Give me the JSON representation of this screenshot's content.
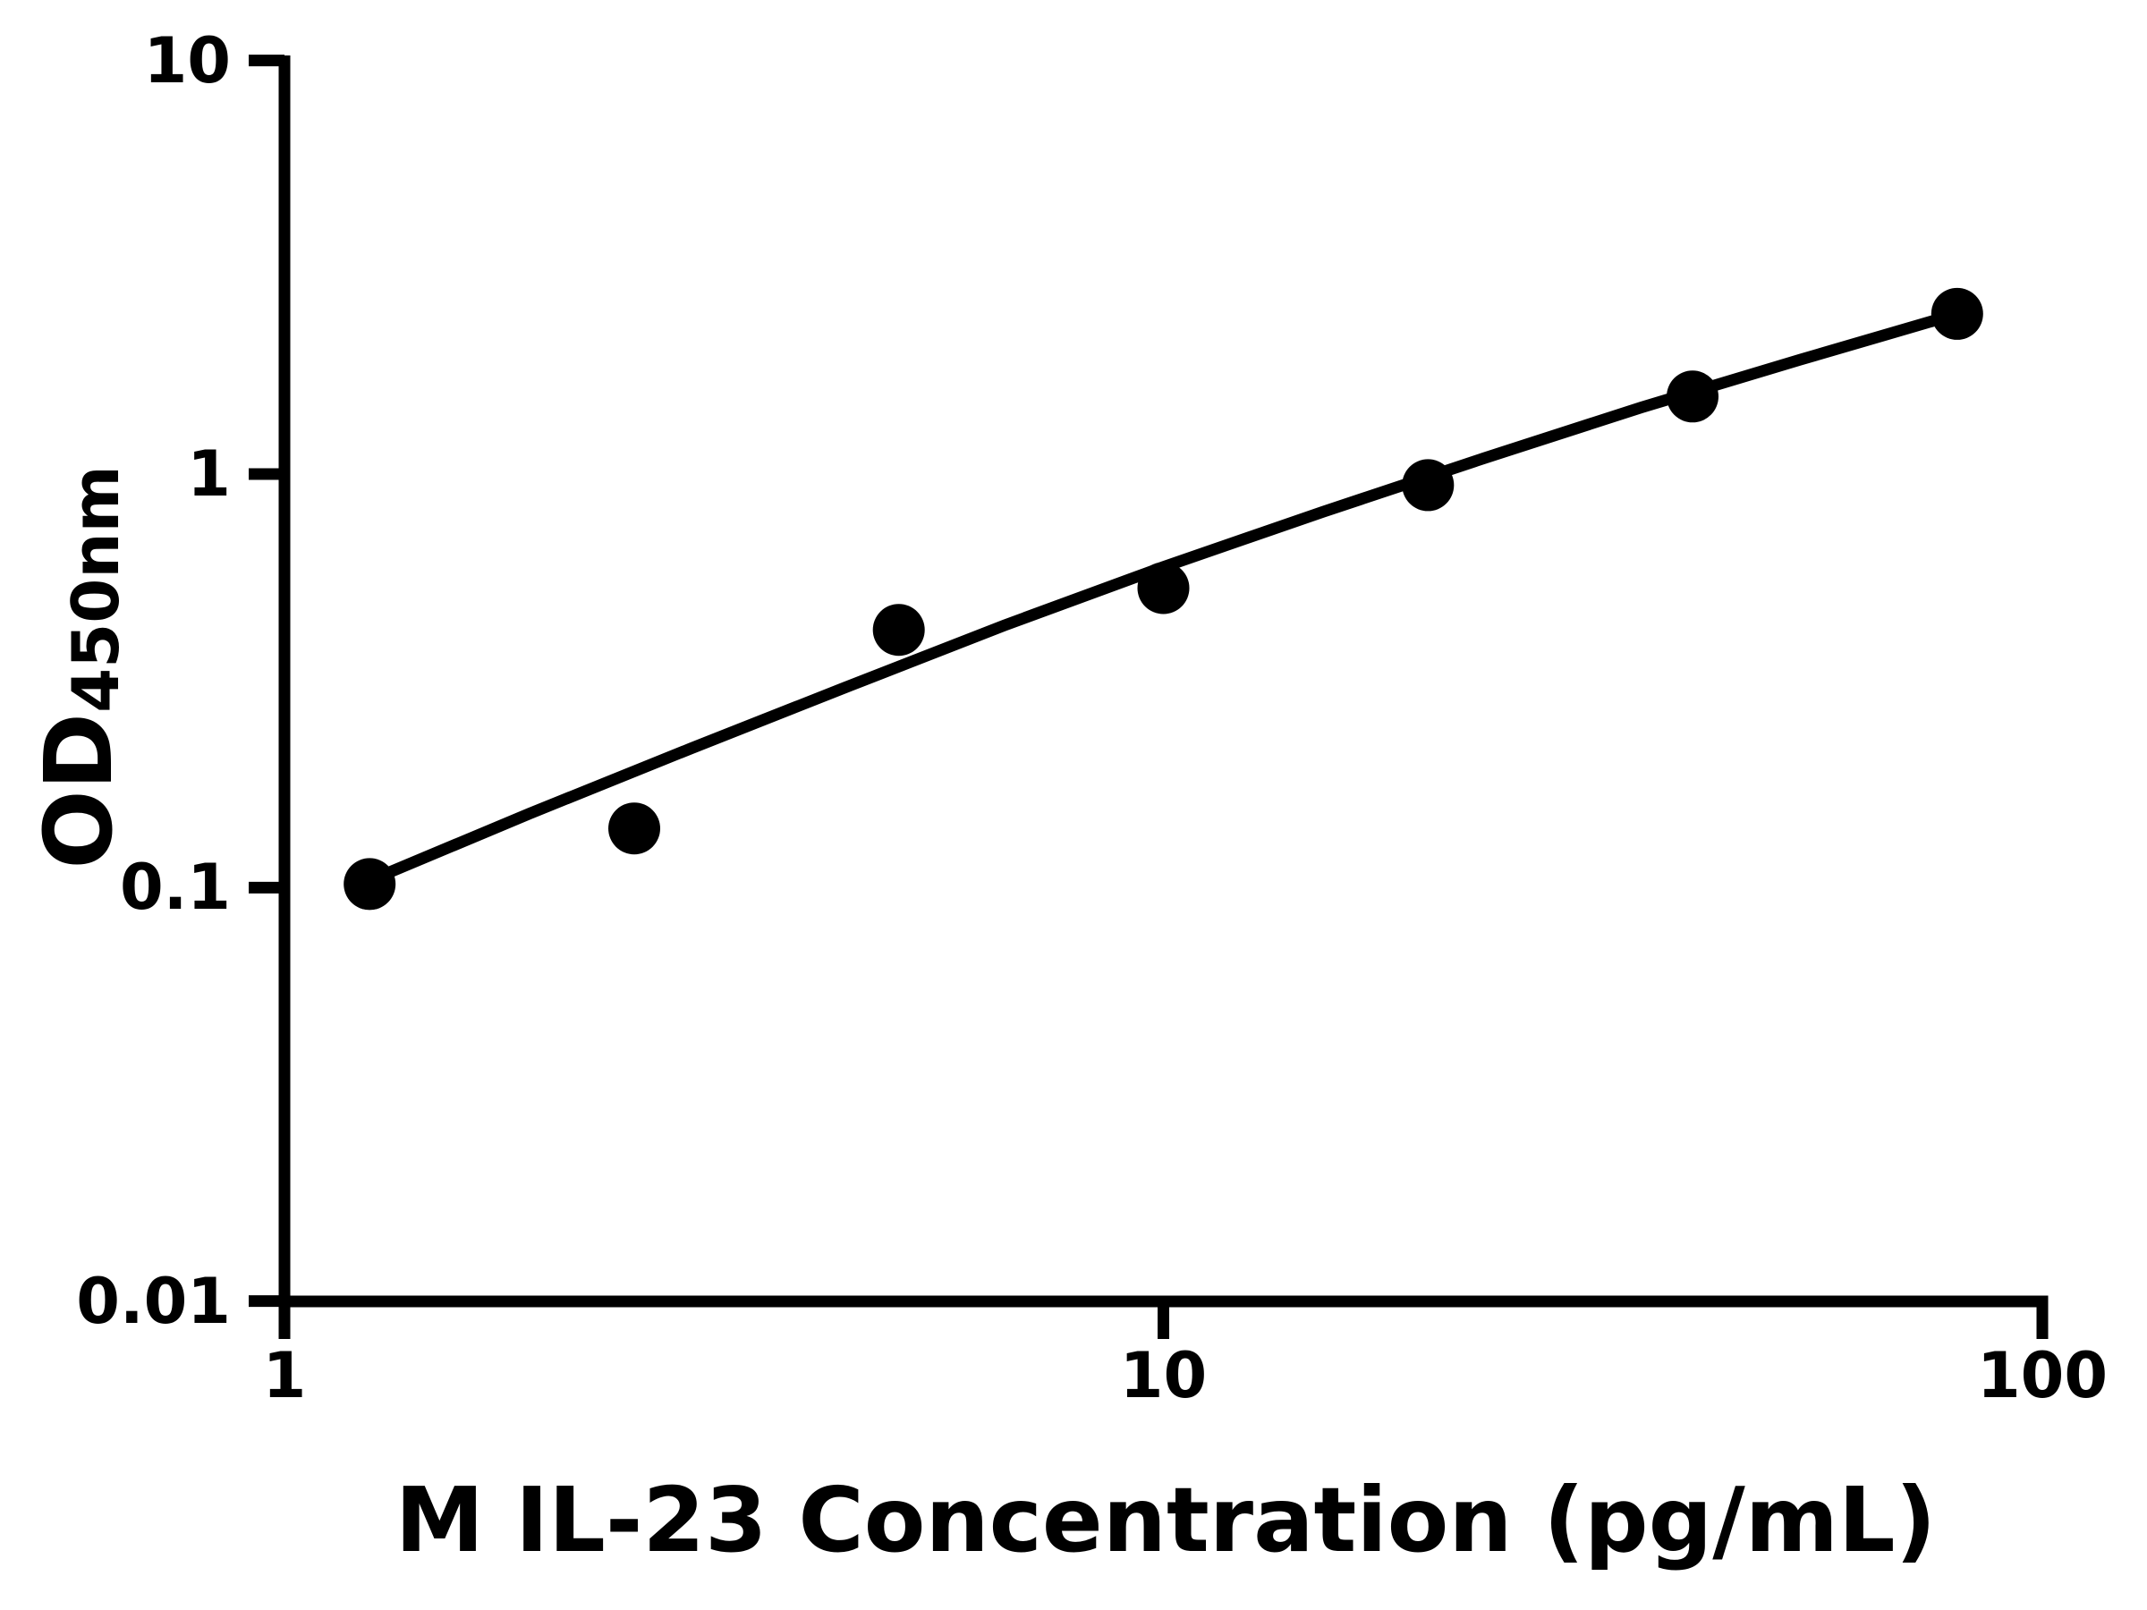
{
  "chart_data": {
    "type": "scatter",
    "title": "",
    "x_axis": {
      "label": "M IL-23 Concentration (pg/mL)",
      "scale": "log",
      "range": [
        1,
        100
      ],
      "ticks": [
        "1",
        "10",
        "100"
      ]
    },
    "y_axis": {
      "label_main": "OD",
      "label_sub": "450nm",
      "scale": "log",
      "range": [
        0.01,
        10
      ],
      "ticks": [
        "10",
        "1",
        "0.1",
        "0.01"
      ]
    },
    "grid": false,
    "legend": null,
    "colors": {
      "foreground": "#000000",
      "background": "#ffffff"
    },
    "series": [
      {
        "name": "standard-points",
        "kind": "points",
        "marker": "filled-circle",
        "color": "#000000",
        "x": [
          1.25,
          2.5,
          5,
          10,
          20,
          40,
          80
        ],
        "y": [
          0.102,
          0.139,
          0.42,
          0.53,
          0.94,
          1.54,
          2.44
        ]
      },
      {
        "name": "fit-curve",
        "kind": "line",
        "color": "#000000",
        "x": [
          1.25,
          1.9,
          2.9,
          4.4,
          6.6,
          10,
          15.2,
          23.1,
          35,
          53,
          80
        ],
        "y": [
          0.104,
          0.151,
          0.217,
          0.308,
          0.431,
          0.596,
          0.811,
          1.09,
          1.45,
          1.89,
          2.44
        ]
      }
    ]
  }
}
